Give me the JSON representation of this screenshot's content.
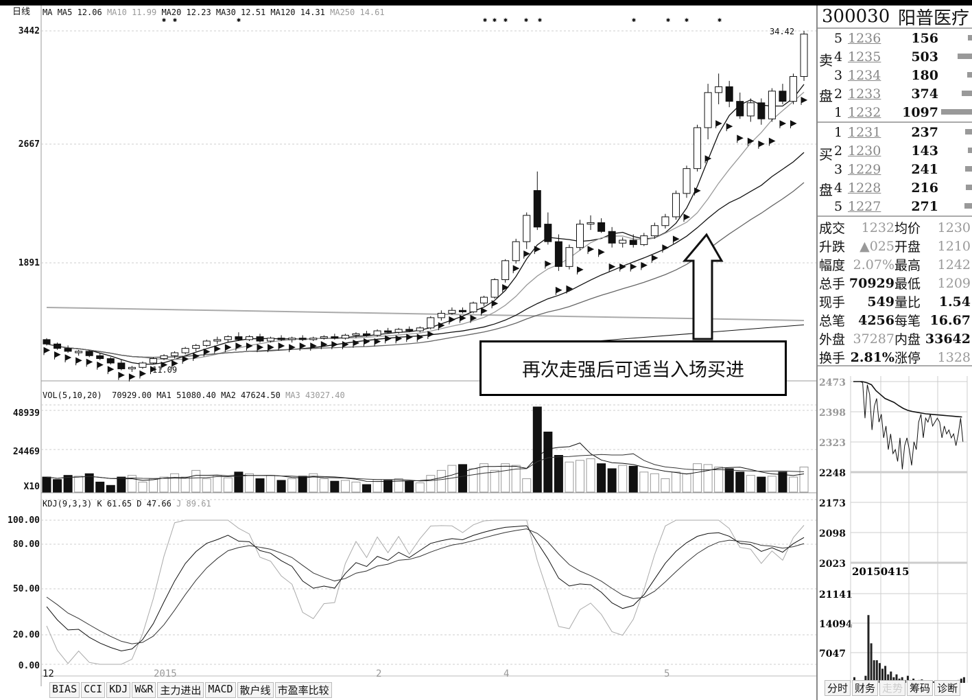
{
  "header": {
    "period": "日线",
    "ma_label": "MA",
    "ma5": "MA5 12.06",
    "ma10": "MA10 11.99",
    "ma20": "MA20 12.23",
    "ma30": "MA30 12.51",
    "ma120": "MA120 14.31",
    "ma250": "MA250 14.61"
  },
  "price_axis": [
    "3442",
    "2667",
    "1891"
  ],
  "price_max_label": "34.42",
  "price_min_label": "11.09",
  "vol_header": {
    "title": "VOL(5,10,20)",
    "value": "70929.00",
    "ma1": "MA1 51080.40",
    "ma2": "MA2 47624.50",
    "ma3": "MA3 43027.40"
  },
  "vol_axis": [
    "48939",
    "24469",
    "X10"
  ],
  "kdj_header": {
    "title": "KDJ(9,3,3)",
    "k": "K 61.65",
    "d": "D 47.66",
    "j": "J 89.61"
  },
  "kdj_axis": [
    "100.00",
    "80.00",
    "50.00",
    "20.00",
    "0.00"
  ],
  "x_labels": [
    "12",
    "2015",
    "2",
    "4",
    "5"
  ],
  "indicator_tabs": [
    "BIAS",
    "CCI",
    "KDJ",
    "W&R",
    "主力进出",
    "MACD",
    "散户线",
    "市盈率比较"
  ],
  "annotation": "再次走强后可适当入场买进",
  "colors": {
    "up": "#ffffff",
    "down": "#111111",
    "grid": "#bbbbbb",
    "ma_gray": "#999999"
  },
  "chart_data": {
    "type": "candlestick",
    "candles": [
      [
        13.3,
        13.4,
        12.9,
        13.0
      ],
      [
        13.0,
        13.1,
        12.6,
        12.7
      ],
      [
        12.7,
        12.9,
        12.4,
        12.5
      ],
      [
        12.4,
        12.6,
        12.2,
        12.5
      ],
      [
        12.5,
        12.6,
        12.1,
        12.2
      ],
      [
        12.2,
        12.4,
        11.9,
        12.0
      ],
      [
        12.0,
        12.1,
        11.6,
        11.7
      ],
      [
        11.7,
        11.9,
        11.2,
        11.3
      ],
      [
        11.3,
        11.5,
        11.09,
        11.4
      ],
      [
        11.4,
        11.8,
        11.3,
        11.7
      ],
      [
        11.7,
        12.1,
        11.6,
        12.0
      ],
      [
        12.0,
        12.3,
        11.9,
        12.2
      ],
      [
        12.2,
        12.5,
        12.0,
        12.4
      ],
      [
        12.4,
        12.8,
        12.3,
        12.7
      ],
      [
        12.7,
        13.0,
        12.5,
        12.9
      ],
      [
        12.9,
        13.3,
        12.8,
        13.2
      ],
      [
        13.2,
        13.5,
        13.0,
        13.3
      ],
      [
        13.3,
        13.6,
        13.1,
        13.5
      ],
      [
        13.5,
        13.8,
        13.2,
        13.3
      ],
      [
        13.3,
        13.6,
        13.2,
        13.5
      ],
      [
        13.5,
        13.7,
        13.1,
        13.2
      ],
      [
        13.2,
        13.5,
        13.1,
        13.4
      ],
      [
        13.4,
        13.6,
        13.2,
        13.3
      ],
      [
        13.3,
        13.5,
        13.1,
        13.4
      ],
      [
        13.4,
        13.6,
        13.2,
        13.3
      ],
      [
        13.3,
        13.5,
        13.2,
        13.4
      ],
      [
        13.4,
        13.6,
        13.3,
        13.5
      ],
      [
        13.5,
        13.7,
        13.3,
        13.4
      ],
      [
        13.4,
        13.7,
        13.3,
        13.6
      ],
      [
        13.6,
        13.8,
        13.4,
        13.7
      ],
      [
        13.7,
        13.9,
        13.5,
        13.6
      ],
      [
        13.6,
        14.0,
        13.5,
        13.9
      ],
      [
        13.9,
        14.1,
        13.7,
        13.8
      ],
      [
        13.8,
        14.1,
        13.7,
        14.0
      ],
      [
        14.0,
        14.2,
        13.8,
        13.9
      ],
      [
        13.9,
        14.2,
        13.8,
        14.1
      ],
      [
        14.1,
        14.9,
        14.0,
        14.8
      ],
      [
        14.8,
        15.3,
        14.6,
        15.1
      ],
      [
        15.1,
        15.5,
        15.0,
        15.3
      ],
      [
        15.3,
        15.5,
        15.1,
        15.2
      ],
      [
        15.2,
        15.9,
        15.1,
        15.8
      ],
      [
        15.8,
        16.3,
        15.6,
        16.2
      ],
      [
        16.2,
        17.5,
        16.1,
        17.4
      ],
      [
        17.4,
        18.8,
        17.2,
        18.7
      ],
      [
        18.7,
        20.2,
        18.5,
        20.0
      ],
      [
        20.0,
        22.0,
        19.5,
        21.8
      ],
      [
        23.5,
        24.8,
        20.8,
        21.0
      ],
      [
        21.2,
        22.0,
        19.8,
        20.0
      ],
      [
        20.0,
        20.5,
        18.0,
        18.3
      ],
      [
        18.3,
        19.8,
        18.1,
        19.6
      ],
      [
        19.6,
        21.5,
        19.4,
        21.2
      ],
      [
        21.2,
        21.8,
        20.8,
        21.3
      ],
      [
        21.3,
        21.6,
        20.6,
        20.7
      ],
      [
        20.7,
        21.0,
        19.6,
        19.9
      ],
      [
        19.9,
        20.3,
        19.6,
        20.1
      ],
      [
        20.1,
        20.5,
        19.6,
        19.8
      ],
      [
        19.8,
        20.6,
        19.7,
        20.4
      ],
      [
        20.4,
        21.3,
        20.2,
        21.1
      ],
      [
        21.1,
        21.9,
        20.9,
        21.7
      ],
      [
        21.7,
        23.5,
        21.5,
        23.3
      ],
      [
        23.3,
        25.2,
        23.0,
        25.0
      ],
      [
        25.0,
        28.0,
        24.8,
        27.8
      ],
      [
        27.8,
        30.8,
        27.0,
        30.2
      ],
      [
        30.2,
        31.5,
        29.4,
        30.6
      ],
      [
        30.6,
        31.0,
        29.2,
        29.6
      ],
      [
        29.6,
        30.2,
        28.4,
        28.6
      ],
      [
        28.6,
        29.8,
        28.2,
        29.5
      ],
      [
        29.5,
        29.8,
        28.0,
        28.4
      ],
      [
        28.4,
        30.5,
        28.2,
        30.3
      ],
      [
        30.3,
        30.8,
        29.4,
        29.6
      ],
      [
        29.6,
        31.5,
        29.4,
        31.3
      ],
      [
        31.3,
        34.42,
        31.0,
        34.2
      ]
    ],
    "volume": [
      9000,
      7500,
      10000,
      9500,
      11000,
      6000,
      4000,
      9000,
      10000,
      6000,
      8000,
      9000,
      11000,
      9000,
      13000,
      8000,
      10000,
      8500,
      12000,
      11000,
      8000,
      10000,
      7000,
      8000,
      9500,
      11000,
      8000,
      6500,
      7000,
      6000,
      4500,
      7500,
      7000,
      8000,
      6500,
      5500,
      10000,
      13000,
      16000,
      16500,
      14000,
      17000,
      13000,
      17000,
      16000,
      8000,
      52000,
      36000,
      22000,
      18000,
      19000,
      20000,
      17000,
      14000,
      16000,
      15500,
      12000,
      11000,
      8000,
      12000,
      11000,
      17000,
      16500,
      15000,
      14000,
      12000,
      10000,
      9000,
      9500,
      12000,
      9000,
      15000
    ],
    "ma120": [
      13.0,
      14.31
    ],
    "ma250": [
      15.5,
      14.61
    ],
    "price_range": [
      10.8,
      34.42
    ],
    "vol_range": [
      0,
      48939
    ],
    "kdj_range": [
      0,
      100
    ]
  },
  "quote": {
    "code": "300030",
    "name": "阳普医疗",
    "sell_label": [
      "卖",
      "盘"
    ],
    "buy_label": [
      "买",
      "盘"
    ],
    "sell": [
      {
        "lv": "5",
        "price": "1236",
        "qty": "156",
        "bar": 0.08
      },
      {
        "lv": "4",
        "price": "1235",
        "qty": "503",
        "bar": 0.26
      },
      {
        "lv": "3",
        "price": "1234",
        "qty": "180",
        "bar": 0.09
      },
      {
        "lv": "2",
        "price": "1233",
        "qty": "374",
        "bar": 0.19
      },
      {
        "lv": "1",
        "price": "1232",
        "qty": "1097",
        "bar": 0.56
      }
    ],
    "buy": [
      {
        "lv": "1",
        "price": "1231",
        "qty": "237",
        "bar": 0.12
      },
      {
        "lv": "2",
        "price": "1230",
        "qty": "143",
        "bar": 0.07
      },
      {
        "lv": "3",
        "price": "1229",
        "qty": "241",
        "bar": 0.12
      },
      {
        "lv": "4",
        "price": "1228",
        "qty": "216",
        "bar": 0.11
      },
      {
        "lv": "5",
        "price": "1227",
        "qty": "271",
        "bar": 0.14
      }
    ],
    "stats": [
      {
        "k": "成交",
        "v": "1232",
        "g": true,
        "k2": "均价",
        "v2": "1230",
        "g2": true
      },
      {
        "k": "升跌",
        "v": "▲025",
        "g": true,
        "k2": "开盘",
        "v2": "1210",
        "g2": true
      },
      {
        "k": "幅度",
        "v": "2.07%",
        "g": true,
        "k2": "最高",
        "v2": "1242",
        "g2": true
      },
      {
        "k": "总手",
        "v": "70929",
        "g": false,
        "k2": "最低",
        "v2": "1209",
        "g2": true
      },
      {
        "k": "现手",
        "v": "549",
        "g": false,
        "k2": "量比",
        "v2": "1.54",
        "g2": false
      },
      {
        "k": "总笔",
        "v": "4256",
        "g": false,
        "k2": "每笔",
        "v2": "16.67",
        "g2": false
      },
      {
        "k": "外盘",
        "v": "37287",
        "g": true,
        "k2": "内盘",
        "v2": "33642",
        "g2": false
      },
      {
        "k": "换手",
        "v": "2.81%",
        "g": false,
        "k2": "涨停",
        "v2": "1328",
        "g2": true
      }
    ]
  },
  "intraday": {
    "axis": [
      "2473",
      "2398",
      "2323",
      "2248",
      "2173",
      "2098",
      "2023"
    ],
    "vol_axis": [
      "21141",
      "14094",
      "7047"
    ],
    "date": "20150415",
    "price": [
      2473,
      2473,
      2473,
      2473,
      2470,
      2380,
      2465,
      2440,
      2350,
      2410,
      2430,
      2370,
      2390,
      2330,
      2360,
      2300,
      2340,
      2290,
      2300,
      2270,
      2330,
      2250,
      2310,
      2330,
      2300,
      2260,
      2320,
      2300,
      2370,
      2390,
      2330,
      2380,
      2370,
      2390,
      2360,
      2370,
      2380,
      2370,
      2330,
      2360,
      2340,
      2350,
      2330,
      2340,
      2310,
      2340,
      2380,
      2320
    ],
    "avg": [
      2473,
      2473,
      2473,
      2470,
      2465,
      2450,
      2440,
      2430,
      2425,
      2420,
      2412,
      2405,
      2400,
      2397,
      2395,
      2393,
      2391,
      2390,
      2389,
      2388,
      2387,
      2386,
      2385,
      2384,
      2383
    ],
    "volume": [
      2000,
      0,
      0,
      0,
      2500,
      24000,
      14000,
      8000,
      8000,
      7000,
      5000,
      6000,
      3000,
      4000,
      2000,
      3000,
      1500,
      2000,
      1000,
      2500,
      1000,
      1500,
      800,
      1000,
      1200,
      500,
      800,
      600,
      500,
      400,
      600,
      800,
      500,
      400,
      300,
      600,
      800,
      1000,
      1500,
      2000
    ]
  },
  "right_tabs": [
    "分时",
    "财务",
    "走势",
    "筹码",
    "诊断"
  ]
}
